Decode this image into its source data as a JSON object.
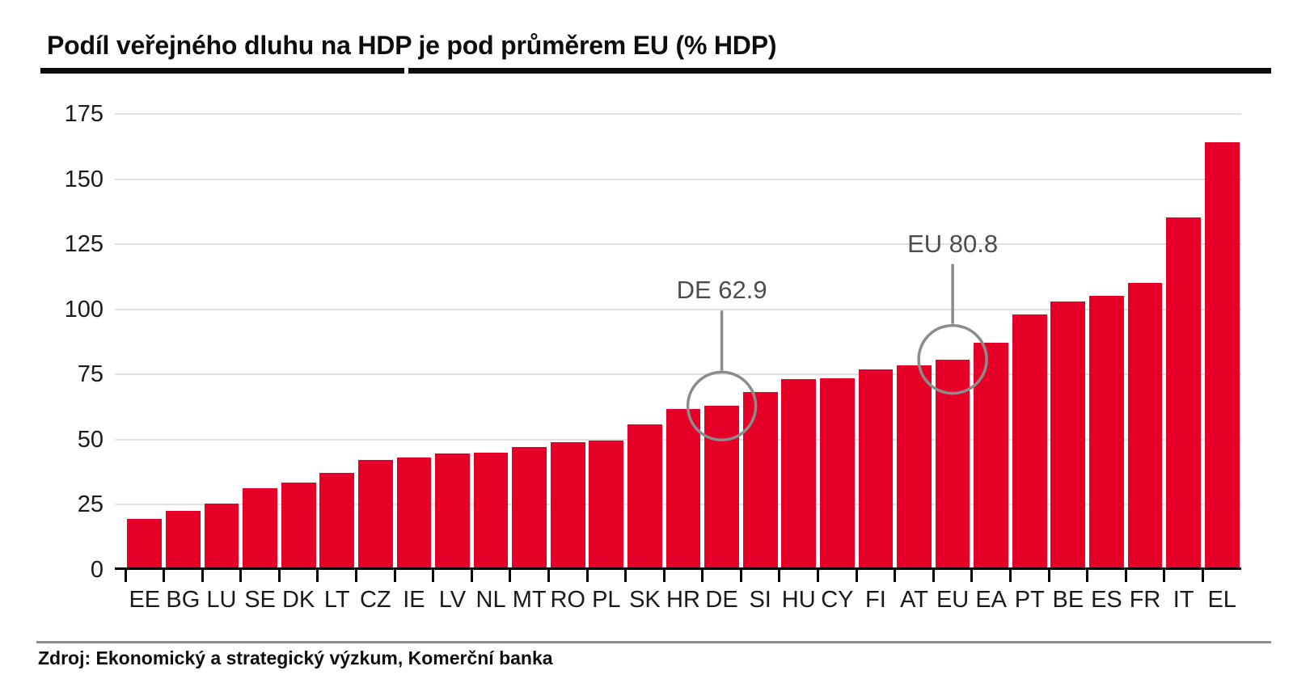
{
  "title": "Podíl veřejného dluhu na HDP je pod průměrem EU (% HDP)",
  "source": "Zdroj: Ekonomický a strategický výzkum, Komerční banka",
  "colors": {
    "bar": "#e60028",
    "gridline": "#e0e0e0",
    "axis": "#000000",
    "annotation_text": "#4d4d4d",
    "annotation_stroke": "#8c8c8c"
  },
  "chart_data": {
    "type": "bar",
    "title": "Podíl veřejného dluhu na HDP je pod průměrem EU (% HDP)",
    "xlabel": "",
    "ylabel": "% HDP",
    "ylim": [
      0,
      175
    ],
    "yticks": [
      0,
      25,
      50,
      75,
      100,
      125,
      150,
      175
    ],
    "grid": true,
    "legend": "none",
    "categories": [
      "EE",
      "BG",
      "LU",
      "SE",
      "DK",
      "LT",
      "CZ",
      "IE",
      "LV",
      "NL",
      "MT",
      "RO",
      "PL",
      "SK",
      "HR",
      "DE",
      "SI",
      "HU",
      "CY",
      "FI",
      "AT",
      "EU",
      "EA",
      "PT",
      "BE",
      "ES",
      "FR",
      "IT",
      "EL"
    ],
    "values": [
      19.6,
      22.5,
      25.3,
      31.3,
      33.4,
      37.1,
      42.1,
      43.0,
      44.8,
      45.0,
      47.2,
      48.9,
      49.5,
      55.7,
      61.7,
      62.9,
      68.2,
      73.1,
      73.5,
      76.9,
      78.4,
      80.8,
      87.2,
      98.0,
      103.0,
      105.1,
      110.2,
      135.3,
      164.2
    ],
    "annotations": [
      {
        "label": "DE 62.9",
        "category": "DE",
        "value": 62.9
      },
      {
        "label": "EU 80.8",
        "category": "EU",
        "value": 80.8
      }
    ]
  }
}
